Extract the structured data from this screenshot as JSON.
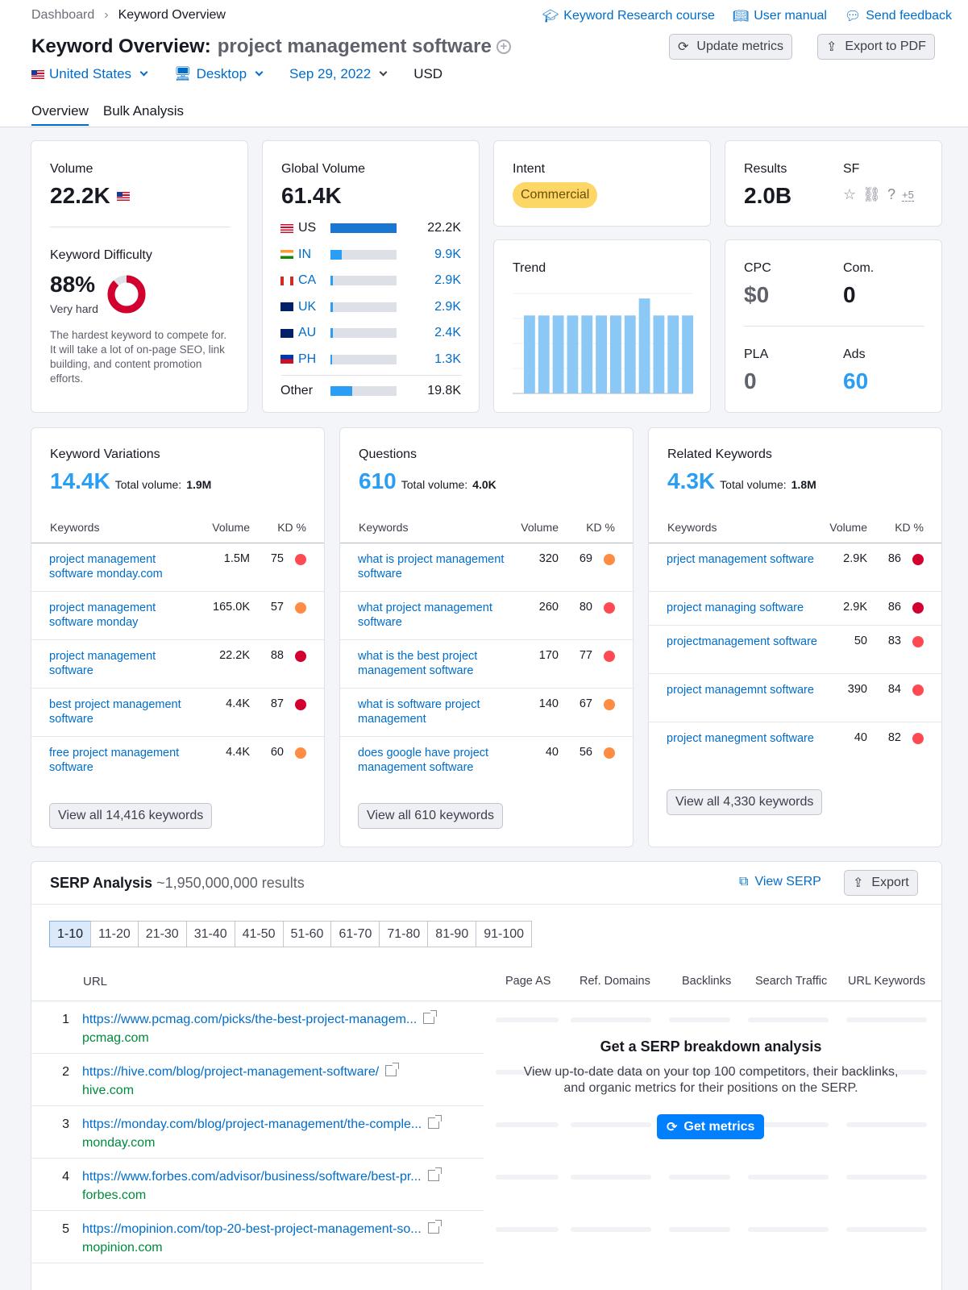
{
  "breadcrumb": {
    "root": "Dashboard",
    "current": "Keyword Overview"
  },
  "toplinks": {
    "course": "Keyword Research course",
    "manual": "User manual",
    "feedback": "Send feedback"
  },
  "header": {
    "title": "Keyword Overview:",
    "keyword": "project management software",
    "update": "Update metrics",
    "export": "Export to PDF"
  },
  "filters": {
    "country": "United States",
    "device": "Desktop",
    "date": "Sep 29, 2022",
    "currency": "USD"
  },
  "tabs": [
    "Overview",
    "Bulk Analysis"
  ],
  "volume": {
    "label": "Volume",
    "value": "22.2K"
  },
  "kd": {
    "label": "Keyword Difficulty",
    "value": "88%",
    "level": "Very hard",
    "percent": 88,
    "desc": "The hardest keyword to compete for. It will take a lot of on-page SEO, link building, and content promotion efforts."
  },
  "global": {
    "label": "Global Volume",
    "value": "61.4K",
    "rows": [
      {
        "cc": "US",
        "val": "22.2K",
        "share": 1.0,
        "link": false
      },
      {
        "cc": "IN",
        "val": "9.9K",
        "share": 0.17,
        "link": true
      },
      {
        "cc": "CA",
        "val": "2.9K",
        "share": 0.04,
        "link": true
      },
      {
        "cc": "UK",
        "val": "2.9K",
        "share": 0.04,
        "link": true
      },
      {
        "cc": "AU",
        "val": "2.4K",
        "share": 0.035,
        "link": true
      },
      {
        "cc": "PH",
        "val": "1.3K",
        "share": 0.025,
        "link": true
      }
    ],
    "other": {
      "cc": "Other",
      "val": "19.8K",
      "share": 0.33
    }
  },
  "intent": {
    "label": "Intent",
    "value": "Commercial"
  },
  "results": {
    "label": "Results",
    "value": "2.0B",
    "sf_label": "SF",
    "sf_more": "+5"
  },
  "trend": {
    "label": "Trend",
    "values": [
      0.78,
      0.78,
      0.78,
      0.78,
      0.78,
      0.78,
      0.78,
      0.78,
      0.95,
      0.78,
      0.78,
      0.78
    ]
  },
  "cpc": {
    "cpc_label": "CPC",
    "cpc": "$0",
    "com_label": "Com.",
    "com": "0",
    "pla_label": "PLA",
    "pla": "0",
    "ads_label": "Ads",
    "ads": "60"
  },
  "panels": [
    {
      "title": "Keyword Variations",
      "count": "14.4K",
      "total_label": "Total volume:",
      "total": "1.9M",
      "rows": [
        {
          "kw": "project management software monday.com",
          "vol": "1.5M",
          "kd": "75",
          "c": "#ff4953"
        },
        {
          "kw": "project management software monday",
          "vol": "165.0K",
          "kd": "57",
          "c": "#ff8c43"
        },
        {
          "kw": "project management software",
          "vol": "22.2K",
          "kd": "88",
          "c": "#d1002f"
        },
        {
          "kw": "best project management software",
          "vol": "4.4K",
          "kd": "87",
          "c": "#d1002f"
        },
        {
          "kw": "free project management software",
          "vol": "4.4K",
          "kd": "60",
          "c": "#ff8c43"
        }
      ],
      "viewall": "View all 14,416 keywords"
    },
    {
      "title": "Questions",
      "count": "610",
      "total_label": "Total volume:",
      "total": "4.0K",
      "rows": [
        {
          "kw": "what is project management software",
          "vol": "320",
          "kd": "69",
          "c": "#ff8c43"
        },
        {
          "kw": "what project management software",
          "vol": "260",
          "kd": "80",
          "c": "#ff4953"
        },
        {
          "kw": "what is the best project management software",
          "vol": "170",
          "kd": "77",
          "c": "#ff4953"
        },
        {
          "kw": "what is software project management",
          "vol": "140",
          "kd": "67",
          "c": "#ff8c43"
        },
        {
          "kw": "does google have project management software",
          "vol": "40",
          "kd": "56",
          "c": "#ff8c43"
        }
      ],
      "viewall": "View all 610 keywords"
    },
    {
      "title": "Related Keywords",
      "count": "4.3K",
      "total_label": "Total volume:",
      "total": "1.8M",
      "rows": [
        {
          "kw": "prject management software",
          "vol": "2.9K",
          "kd": "86",
          "c": "#d1002f"
        },
        {
          "kw": "project managing software",
          "vol": "2.9K",
          "kd": "86",
          "c": "#d1002f"
        },
        {
          "kw": "projectmanagement software",
          "vol": "50",
          "kd": "83",
          "c": "#ff4953"
        },
        {
          "kw": "project managemnt software",
          "vol": "390",
          "kd": "84",
          "c": "#ff4953"
        },
        {
          "kw": "project manegment software",
          "vol": "40",
          "kd": "82",
          "c": "#ff4953"
        }
      ],
      "viewall": "View all 4,330 keywords"
    }
  ],
  "table_heads": {
    "kw": "Keywords",
    "vol": "Volume",
    "kd": "KD %"
  },
  "serp": {
    "title": "SERP Analysis",
    "results": "~1,950,000,000 results",
    "view": "View SERP",
    "export": "Export",
    "pages": [
      "1-10",
      "11-20",
      "21-30",
      "31-40",
      "41-50",
      "51-60",
      "61-70",
      "71-80",
      "81-90",
      "91-100"
    ],
    "cols": [
      "URL",
      "Page AS",
      "Ref. Domains",
      "Backlinks",
      "Search Traffic",
      "URL Keywords"
    ],
    "rows": [
      {
        "n": "1",
        "url": "https://www.pcmag.com/picks/the-best-project-managem...",
        "domain": "pcmag.com"
      },
      {
        "n": "2",
        "url": "https://hive.com/blog/project-management-software/",
        "domain": "hive.com"
      },
      {
        "n": "3",
        "url": "https://monday.com/blog/project-management/the-comple...",
        "domain": "monday.com"
      },
      {
        "n": "4",
        "url": "https://www.forbes.com/advisor/business/software/best-pr...",
        "domain": "forbes.com"
      },
      {
        "n": "5",
        "url": "https://mopinion.com/top-20-best-project-management-so...",
        "domain": "mopinion.com"
      }
    ],
    "cta_title": "Get a SERP breakdown analysis",
    "cta_text": "View up-to-date data on your top 100 competitors, their backlinks, and organic metrics for their positions on the SERP.",
    "cta_button": "Get metrics"
  },
  "colors": {
    "accent": "#006dca",
    "bar": "#8cc8f5",
    "intent": "#fcd766",
    "kd_ring": "#d1002f"
  }
}
